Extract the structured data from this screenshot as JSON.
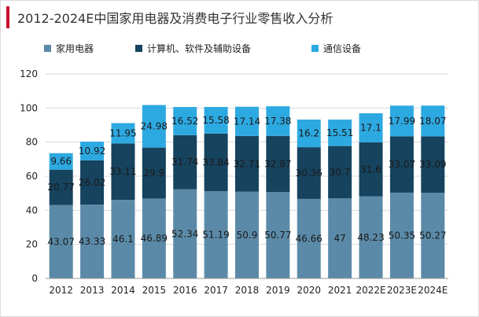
{
  "title": "2012-2024E中国家用电器及消费电子行业零售收入分析",
  "chart_data": {
    "type": "bar",
    "stacked": true,
    "categories": [
      "2012",
      "2013",
      "2014",
      "2015",
      "2016",
      "2017",
      "2018",
      "2019",
      "2020",
      "2021",
      "2022E",
      "2023E",
      "2024E"
    ],
    "series": [
      {
        "name": "家用电器",
        "color": "#5b8aa8",
        "values": [
          43.07,
          43.33,
          46.1,
          46.89,
          52.34,
          51.19,
          50.9,
          50.77,
          46.66,
          47,
          48.23,
          50.35,
          50.27
        ],
        "labels": [
          "43.07",
          "43.33",
          "46.1",
          "46.89",
          "52.34",
          "51.19",
          "50.9",
          "50.77",
          "46.66",
          "47",
          "48.23",
          "50.35",
          "50.27"
        ]
      },
      {
        "name": "计算机、软件及辅助设备",
        "color": "#16435e",
        "values": [
          20.77,
          26.02,
          33.11,
          29.9,
          31.74,
          33.84,
          32.71,
          32.87,
          30.36,
          30.7,
          31.6,
          33.07,
          33.09
        ],
        "labels": [
          "20.77",
          "26.02",
          "33.11",
          "29.9",
          "31.74",
          "33.84",
          "32.71",
          "32.87",
          "30.36",
          "30.7",
          "31.6",
          "33.07",
          "33.09"
        ]
      },
      {
        "name": "通信设备",
        "color": "#2da9e1",
        "values": [
          9.66,
          10.92,
          11.95,
          24.98,
          16.52,
          15.58,
          17.14,
          17.38,
          16.2,
          15.51,
          17.1,
          17.99,
          18.07
        ],
        "labels": [
          "9.66",
          "10.92",
          "11.95",
          "24.98",
          "16.52",
          "15.58",
          "17.14",
          "17.38",
          "16.2",
          "15.51",
          "17.1",
          "17.99",
          "18.07"
        ]
      }
    ],
    "ylim": [
      0,
      120
    ],
    "yticks": [
      "0",
      "20",
      "40",
      "60",
      "80",
      "100",
      "120"
    ],
    "grid": true,
    "legend_position": "top"
  }
}
